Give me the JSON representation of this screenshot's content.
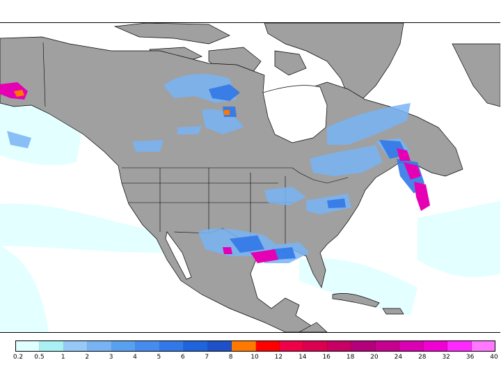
{
  "map": {
    "land_color": "#a0a0a0",
    "water_color": "#ffffff",
    "boundary_color": "#000000",
    "region": "North America",
    "layer": "precipitation-shading"
  },
  "colorbar": {
    "colors": [
      "#e0ffff",
      "#a8f0f4",
      "#96c8f8",
      "#78b4f4",
      "#5aa0f0",
      "#468cf0",
      "#3278e8",
      "#1e64dc",
      "#1e50c8",
      "#ff7800",
      "#ff0000",
      "#f00046",
      "#dc0050",
      "#c80064",
      "#b4007a",
      "#c80090",
      "#dc00b4",
      "#f000d2",
      "#ff28ff",
      "#ff78ff"
    ],
    "labels": [
      "0.2",
      "0.5",
      "1",
      "2",
      "3",
      "4",
      "5",
      "6",
      "7",
      "8",
      "10",
      "12",
      "14",
      "16",
      "18",
      "20",
      "24",
      "28",
      "32",
      "36",
      "40"
    ]
  }
}
